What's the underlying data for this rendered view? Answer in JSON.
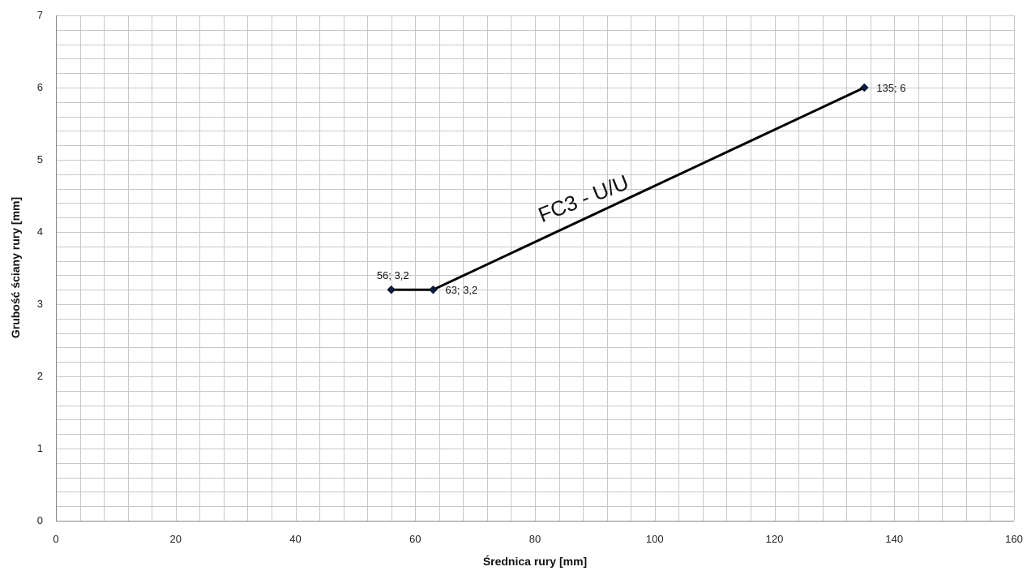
{
  "chart_data": {
    "type": "line",
    "xlabel": "Średnica rury [mm]",
    "ylabel": "Grubość ściany rury [mm]",
    "xlim": [
      0,
      160
    ],
    "ylim": [
      0,
      7
    ],
    "x_major_ticks": [
      0,
      20,
      40,
      60,
      80,
      100,
      120,
      140,
      160
    ],
    "y_major_ticks": [
      0,
      1,
      2,
      3,
      4,
      5,
      6,
      7
    ],
    "x_minor_step": 4,
    "y_minor_step": 0.2,
    "x_tick_labels": [
      "0",
      "20",
      "40",
      "60",
      "80",
      "100",
      "120",
      "140",
      "160"
    ],
    "y_tick_labels": [
      "0",
      "1",
      "2",
      "3",
      "4",
      "5",
      "6",
      "7"
    ],
    "grid": true,
    "legend": "none",
    "colors": {
      "line": "#000000",
      "marker": "#0d1b3e",
      "grid": "#c8c8c8",
      "axis": "#888888"
    },
    "series": [
      {
        "points": [
          {
            "x": 56,
            "y": 3.2,
            "label": "56; 3,2"
          },
          {
            "x": 63,
            "y": 3.2,
            "label": "63; 3,2"
          },
          {
            "x": 135,
            "y": 6,
            "label": "135; 6"
          }
        ]
      }
    ],
    "annotations": [
      {
        "text": "FC3 - U/U"
      }
    ]
  }
}
